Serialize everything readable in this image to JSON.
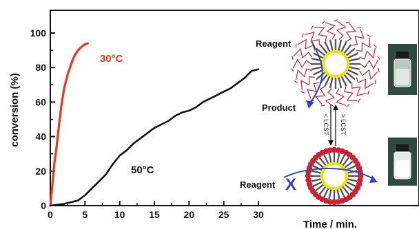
{
  "chart_data": {
    "type": "line",
    "xlabel": "Time / min.",
    "ylabel": "conversion (%)",
    "xlim": [
      0,
      30
    ],
    "ylim": [
      0,
      100
    ],
    "x_ticks": [
      0,
      5,
      10,
      15,
      20,
      25,
      30
    ],
    "y_ticks": [
      0,
      20,
      40,
      60,
      80,
      100
    ],
    "grid": false,
    "series": [
      {
        "name": "30°C",
        "color": "#ee3322",
        "points": [
          [
            0,
            0
          ],
          [
            0.3,
            12
          ],
          [
            0.6,
            25
          ],
          [
            0.9,
            34
          ],
          [
            1.2,
            45
          ],
          [
            1.6,
            58
          ],
          [
            2.0,
            68
          ],
          [
            2.5,
            76
          ],
          [
            3.0,
            82
          ],
          [
            3.5,
            87
          ],
          [
            4.0,
            90
          ],
          [
            4.5,
            92
          ],
          [
            5.0,
            93.5
          ],
          [
            5.4,
            94
          ]
        ]
      },
      {
        "name": "50°C",
        "color": "#111111",
        "points": [
          [
            0,
            0
          ],
          [
            1,
            0.5
          ],
          [
            2,
            1
          ],
          [
            3,
            2
          ],
          [
            4,
            3
          ],
          [
            5,
            6
          ],
          [
            6,
            10
          ],
          [
            7,
            14
          ],
          [
            8,
            18
          ],
          [
            9,
            24
          ],
          [
            10,
            29
          ],
          [
            11,
            32
          ],
          [
            12,
            36
          ],
          [
            13,
            39
          ],
          [
            14,
            42
          ],
          [
            15,
            45
          ],
          [
            16,
            47
          ],
          [
            17,
            49
          ],
          [
            18,
            52
          ],
          [
            19,
            54
          ],
          [
            20,
            55
          ],
          [
            21,
            57
          ],
          [
            22,
            60
          ],
          [
            23,
            62
          ],
          [
            24,
            64
          ],
          [
            25,
            66
          ],
          [
            26,
            68
          ],
          [
            27,
            71
          ],
          [
            28,
            74
          ],
          [
            29,
            78
          ],
          [
            30,
            79
          ]
        ]
      }
    ]
  },
  "scheme": {
    "reagent_top": "Reagent",
    "product": "Product",
    "reagent_bottom": "Reagent",
    "below_lcst": "< LCST",
    "above_lcst": "> LCST",
    "blocked_mark": "X",
    "colors": {
      "polymer": "#cc2233",
      "core": "#f2e200",
      "spoke": "#555555",
      "arrow": "#3344bb"
    }
  }
}
